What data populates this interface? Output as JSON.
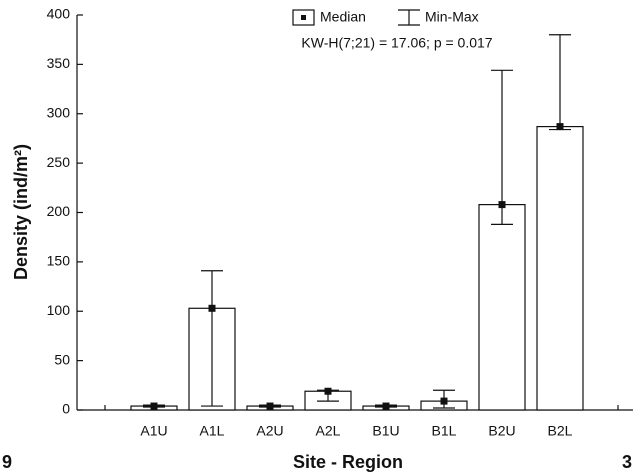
{
  "chart_data": {
    "type": "bar",
    "y_label": "Density (ind/m²)",
    "x_label": "Site - Region",
    "annotation": "KW-H(7;21) = 17.06; p = 0.017",
    "legend": [
      "Median",
      "Min-Max"
    ],
    "categories": [
      "A1U",
      "A1L",
      "A2U",
      "A2L",
      "B1U",
      "B1L",
      "B2U",
      "B2L"
    ],
    "values": [
      4,
      103,
      4,
      19,
      4,
      9,
      208,
      287
    ],
    "min": [
      3,
      4,
      3,
      9,
      3,
      2,
      188,
      284
    ],
    "max": [
      5,
      141,
      5,
      20,
      5,
      20,
      344,
      380
    ],
    "color": "#ffffff",
    "ylim": [
      0,
      400
    ],
    "yticks": [
      0,
      50,
      100,
      150,
      200,
      250,
      300,
      350,
      400
    ],
    "grid": false,
    "fragments": [
      "9",
      "3"
    ]
  }
}
